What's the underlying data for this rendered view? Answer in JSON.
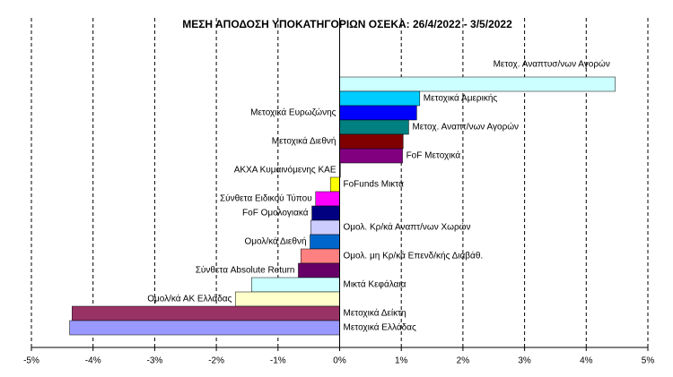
{
  "chart_data": {
    "type": "barh",
    "title": "ΜΕΣΗ ΑΠΟΔΟΣΗ ΥΠΟΚΑΤΗΓΟΡΙΩΝ  ΟΣΕΚΑ: 26/4/2022 - 3/5/2022",
    "categories": [
      "Μετοχ. Αναπτυσ/νων Αγορών",
      "Μετοχικά Αμερικής",
      "Μετοχικά Ευρωζώνης",
      "Μετοχ. Αναπτ/νων Αγορών",
      "Μετοχικά Διεθνή",
      "FoF Μετοχικά",
      "ΑΚΧΑ Κυμαινόμενης ΚΑΕ",
      "FoFunds Μικτά",
      "Σύνθετα Ειδικού Τύπου",
      "FoF Ομολογιακά",
      "Ομολ. Κρ/κά Αναπτ/νων Χωρών",
      "Ομολ/κά Διεθνή",
      "Ομολ. μη Κρ/κά Επενδ/κής Διαβάθ.",
      "Σύνθετα Absolute Return",
      "Μικτά Κεφάλαια",
      "Ομολ/κά ΑΚ Ελλάδας",
      "Μετοχικά Δείκτη",
      "Μετοχικά Ελλάδας"
    ],
    "values": [
      4.47,
      1.3,
      1.25,
      1.12,
      1.03,
      1.02,
      0.01,
      -0.15,
      -0.39,
      -0.45,
      -0.47,
      -0.48,
      -0.63,
      -0.67,
      -1.43,
      -1.69,
      -4.34,
      -4.38
    ],
    "colors": [
      "#ccffff",
      "#00ccff",
      "#0000ff",
      "#008080",
      "#800000",
      "#800080",
      "#333399",
      "#ffff00",
      "#ff00ff",
      "#000080",
      "#ccccff",
      "#0066cc",
      "#ff8080",
      "#660066",
      "#ccffff",
      "#ffffcc",
      "#993366",
      "#9999ff"
    ],
    "xlim": [
      -5,
      5
    ],
    "xticks": [
      {
        "value": -5,
        "label": "-5%"
      },
      {
        "value": -4,
        "label": "-4%"
      },
      {
        "value": -3,
        "label": "-3%"
      },
      {
        "value": -2,
        "label": "-2%"
      },
      {
        "value": -1,
        "label": "-1%"
      },
      {
        "value": 0,
        "label": "0%"
      },
      {
        "value": 1,
        "label": "1%"
      },
      {
        "value": 2,
        "label": "2%"
      },
      {
        "value": 3,
        "label": "3%"
      },
      {
        "value": 4,
        "label": "4%"
      },
      {
        "value": 5,
        "label": "5%"
      }
    ],
    "grid": true
  }
}
